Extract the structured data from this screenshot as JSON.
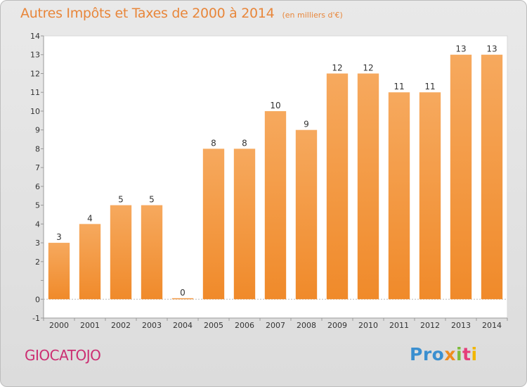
{
  "title": "Autres Impôts et Taxes de 2000 à 2014",
  "unit_label": "(en milliers d'€)",
  "commune": "GIOCATOJO",
  "logo": {
    "parts": [
      "Pro",
      "x",
      "i",
      "t",
      "i"
    ]
  },
  "colors": {
    "bar": "#f08a2a",
    "bar_light": "#f6a95e",
    "title": "#e8863a",
    "commune": "#cc2e72"
  },
  "chart_data": {
    "type": "bar",
    "title": "Autres Impôts et Taxes de 2000 à 2014",
    "unit": "(en milliers d'€)",
    "categories": [
      "2000",
      "2001",
      "2002",
      "2003",
      "2004",
      "2005",
      "2006",
      "2007",
      "2008",
      "2009",
      "2010",
      "2011",
      "2012",
      "2013",
      "2014"
    ],
    "values": [
      3,
      4,
      5,
      5,
      0,
      8,
      8,
      10,
      9,
      12,
      12,
      11,
      11,
      13,
      13
    ],
    "value_labels": [
      "3",
      "4",
      "5",
      "5",
      "0",
      "8",
      "8",
      "10",
      "9",
      "12",
      "12",
      "11",
      "11",
      "13",
      "13"
    ],
    "ylim": [
      -1,
      14
    ],
    "yticks": [
      -1,
      0,
      1,
      2,
      3,
      4,
      5,
      6,
      7,
      8,
      9,
      10,
      11,
      12,
      13,
      14
    ],
    "ytick_labels": [
      "-1",
      "0",
      "",
      "2",
      "3",
      "4",
      "5",
      "6",
      "7",
      "8",
      "9",
      "10",
      "11",
      "12",
      "13",
      "14"
    ],
    "grid": false
  }
}
